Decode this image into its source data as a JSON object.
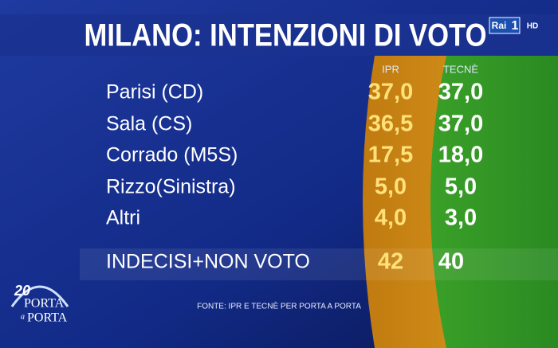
{
  "header": {
    "title": "MILANO: INTENZIONI DI VOTO",
    "channel": "Rai",
    "channel_number": "1",
    "hd": "HD"
  },
  "table": {
    "columns": [
      "IPR",
      "TECNÈ"
    ],
    "rows": [
      [
        "Parisi (CD)",
        "37,0",
        "37,0"
      ],
      [
        "Sala (CS)",
        "36,5",
        "37,0"
      ],
      [
        "Corrado (M5S)",
        "17,5",
        "18,0"
      ],
      [
        "Rizzo(Sinistra)",
        "5,0",
        "5,0"
      ],
      [
        "Altri",
        "4,0",
        "3,0"
      ]
    ],
    "total": [
      "INDECISI+NON VOTO",
      "42",
      "40"
    ]
  },
  "footer": {
    "source": "FONTE: IPR E TECNÈ PER PORTA A PORTA"
  },
  "logo": {
    "number": "20",
    "line1": "PORTA",
    "line2": "a",
    "line3": "PORTA"
  }
}
